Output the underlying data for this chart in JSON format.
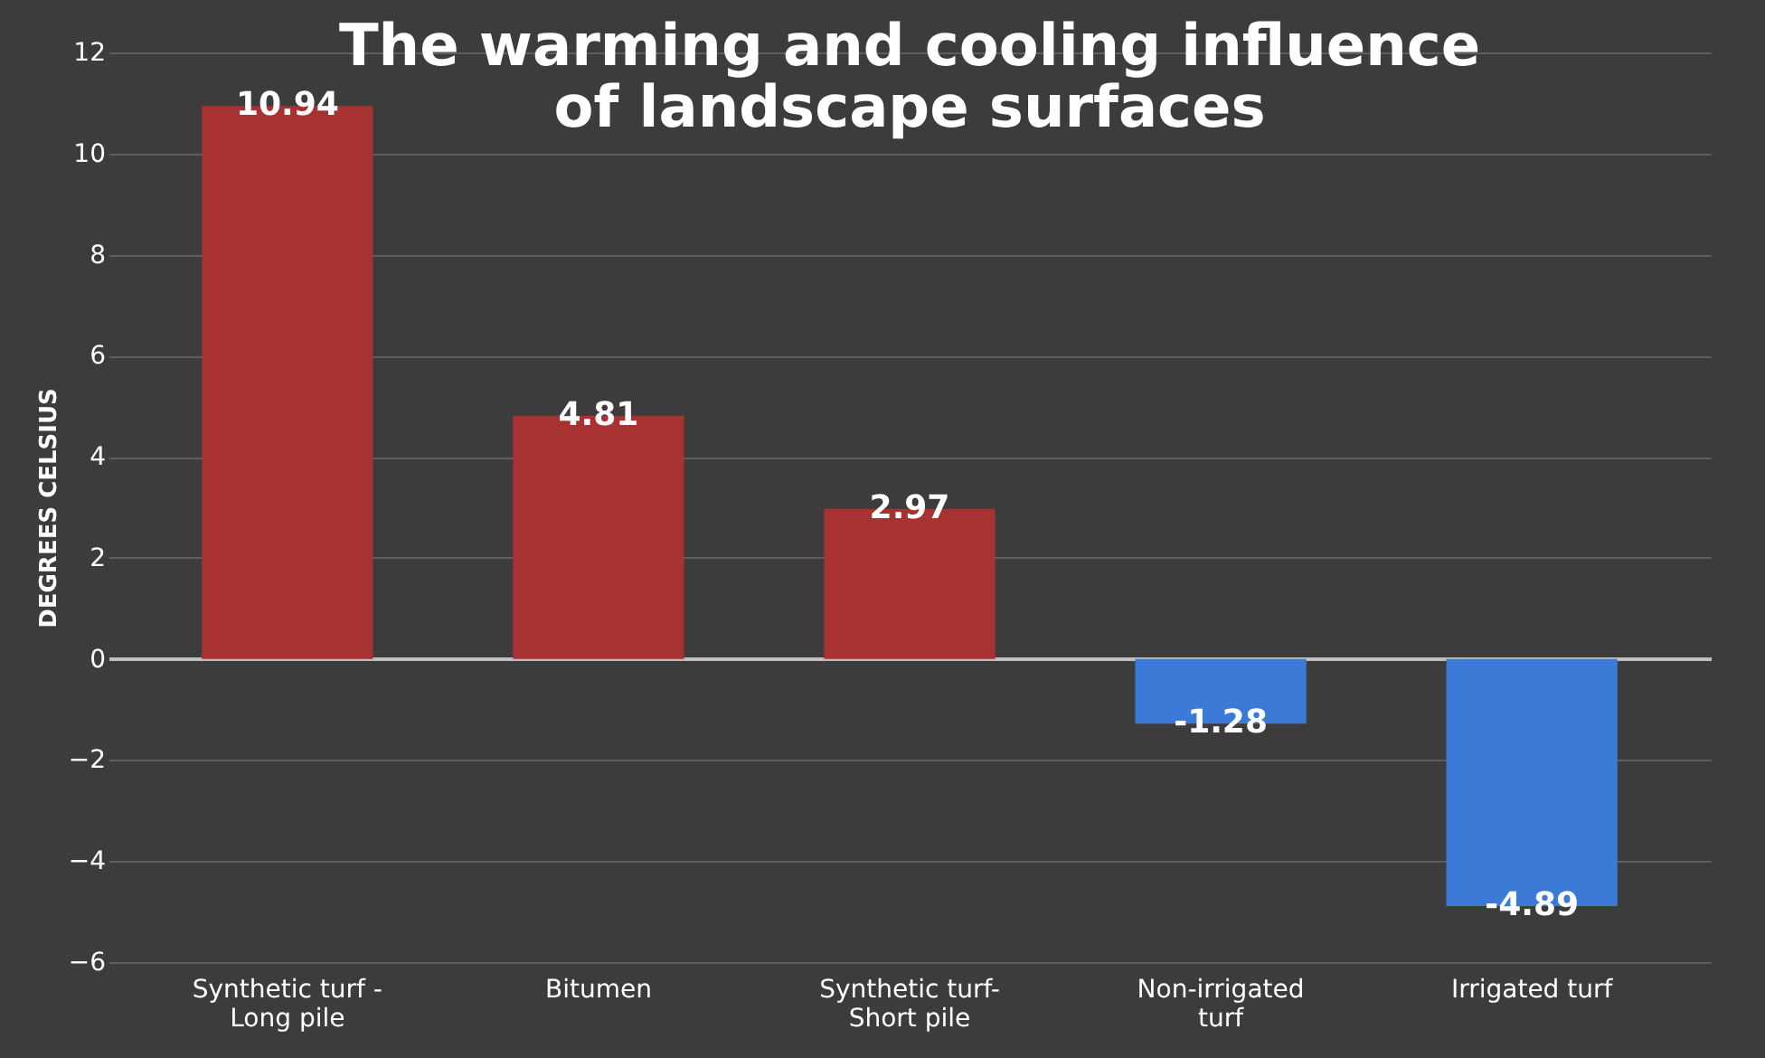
{
  "chart_data": {
    "type": "bar",
    "title": "The warming and cooling influence\nof landscape surfaces",
    "ylabel": "DEGREES CELSIUS",
    "categories": [
      "Synthetic turf -\nLong pile",
      "Bitumen",
      "Synthetic turf-\nShort pile",
      "Non-irrigated\nturf",
      "Irrigated turf"
    ],
    "values": [
      10.94,
      4.81,
      2.97,
      -1.28,
      -4.89
    ],
    "colors": [
      "#a83232",
      "#a83232",
      "#a83232",
      "#3b7ad6",
      "#3b7ad6"
    ],
    "ylim": [
      -6,
      12
    ],
    "yticks": [
      -6,
      -4,
      -2,
      0,
      2,
      4,
      6,
      8,
      10,
      12
    ],
    "grid": "y",
    "data_labels": true
  }
}
